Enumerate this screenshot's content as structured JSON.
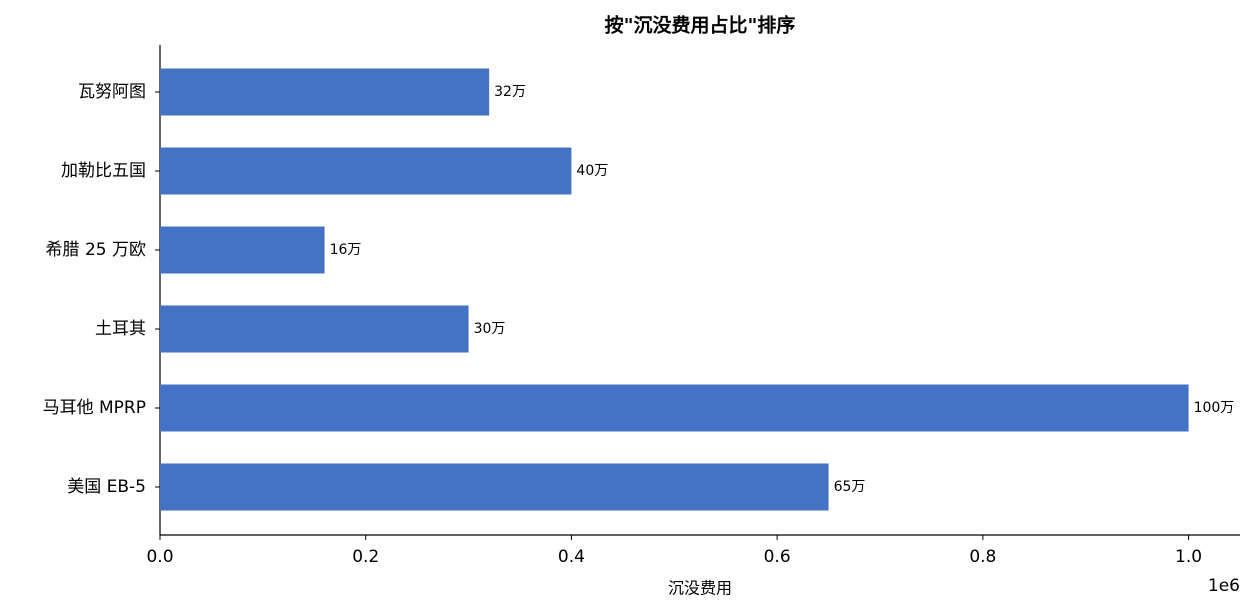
{
  "chart_data": {
    "type": "barh",
    "title": "按\"沉没费用占比\"排序",
    "xlabel": "沉没费用",
    "x_offset_label": "1e6",
    "categories": [
      "瓦努阿图",
      "加勒比五国",
      "希腊 25 万欧",
      "土耳其",
      "马耳他 MPRP",
      "美国 EB-5"
    ],
    "values": [
      320000,
      400000,
      160000,
      300000,
      1000000,
      650000
    ],
    "value_labels": [
      "32万",
      "40万",
      "16万",
      "30万",
      "100万",
      "65万"
    ],
    "color": "#4472c4",
    "xlim": [
      0,
      1050000
    ],
    "xticks": [
      {
        "value": 0,
        "label": "0.0"
      },
      {
        "value": 200000,
        "label": "0.2"
      },
      {
        "value": 400000,
        "label": "0.4"
      },
      {
        "value": 600000,
        "label": "0.6"
      },
      {
        "value": 800000,
        "label": "0.8"
      },
      {
        "value": 1000000,
        "label": "1.0"
      }
    ]
  }
}
